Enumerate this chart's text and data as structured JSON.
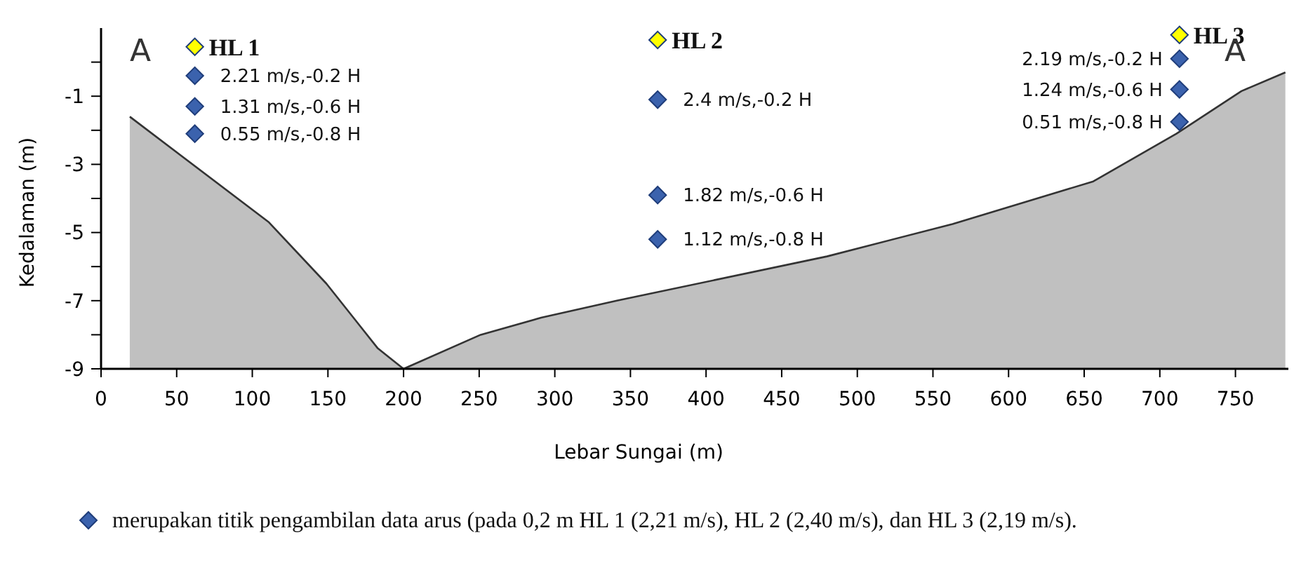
{
  "chart_data": {
    "type": "line",
    "xlabel": "Lebar Sungai (m)",
    "ylabel": "Kedalaman (m)",
    "xlim": [
      0,
      785
    ],
    "xticks": [
      0,
      50,
      100,
      150,
      200,
      250,
      300,
      350,
      400,
      450,
      500,
      550,
      600,
      650,
      700,
      750
    ],
    "ylim": [
      -9,
      1
    ],
    "yticks": [
      {
        "value": 0,
        "label": null
      },
      -1,
      {
        "value": -2,
        "label": null
      },
      -3,
      {
        "value": -4,
        "label": null
      },
      -5,
      {
        "value": -6,
        "label": null
      },
      -7,
      {
        "value": -8,
        "label": null
      },
      -9
    ],
    "grid": false,
    "series": [
      {
        "color": "#333333",
        "x": [
          19,
          111,
          149,
          183,
          200,
          251,
          291,
          341,
          480,
          563,
          656,
          711,
          754,
          783
        ],
        "values": [
          -1.6,
          -4.7,
          -6.5,
          -8.4,
          -9,
          -8,
          -7.5,
          -7,
          -5.7,
          -4.75,
          -3.5,
          -2.1,
          -0.85,
          -0.3
        ],
        "lower": [
          -9,
          -9,
          -9,
          -9,
          -9,
          -9,
          -9,
          -9,
          -9,
          -9,
          -9,
          -9,
          -9,
          -9
        ],
        "upper": [
          -1.6,
          -4.7,
          -6.5,
          -8.4,
          -9,
          -8,
          -7.5,
          -7,
          -5.7,
          -4.75,
          -3.5,
          -2.1,
          -0.85,
          -0.3
        ]
      },
      {
        "type": "scatter",
        "marker": "diamond",
        "color": "#3b62ad",
        "x": [
          62,
          62,
          62,
          368,
          368,
          368,
          713,
          713,
          713
        ],
        "values": [
          -0.4,
          -1.3,
          -2.1,
          -1.1,
          -3.9,
          -5.2,
          0.1,
          -0.8,
          -1.75
        ],
        "value_labels": [
          "2.21 m/s,-0.2 H",
          "1.31 m/s,-0.6 H",
          "0.55 m/s,-0.8 H",
          "2.4 m/s,-0.2 H",
          "1.82 m/s,-0.6 H",
          "1.12 m/s,-0.8 H",
          "2.19 m/s,-0.2 H",
          "1.24 m/s,-0.6 H",
          "0.51 m/s,-0.8 H"
        ]
      },
      {
        "type": "scatter",
        "marker": "diamond",
        "color": "#ffff00",
        "x": [
          62,
          368,
          713
        ],
        "values": [
          0.45,
          0.65,
          0.8
        ],
        "value_labels": [
          "HL 1",
          "HL 2",
          "HL 3"
        ]
      }
    ],
    "annotations": [
      "A",
      "A",
      "merupakan titik pengambilan data arus (pada 0,2 m HL 1 (2,21 m/s), HL 2 (2,40 m/s), dan HL 3 (2,19 m/s)."
    ]
  }
}
